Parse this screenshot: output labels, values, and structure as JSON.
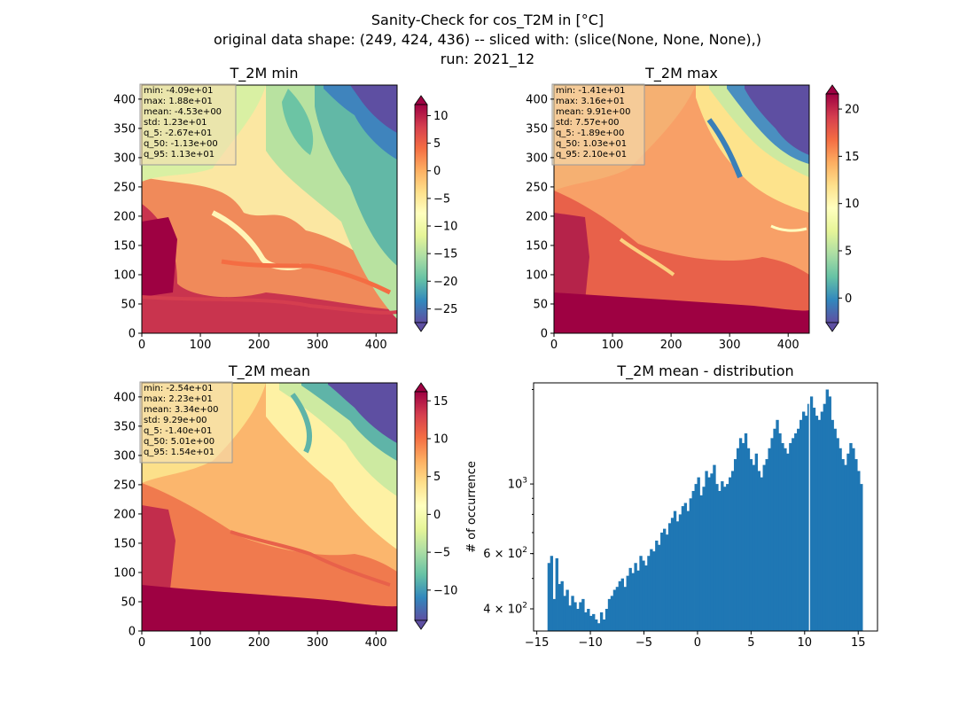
{
  "figure": {
    "title_lines": [
      "Sanity-Check for cos_T2M in [°C]",
      "original data shape: (249, 424, 436) -- sliced with: (slice(None, None, None),)",
      "run: 2021_12"
    ]
  },
  "colormap": "Spectral_r",
  "colors": {
    "hist_bar": "#1f77b4",
    "stats_box_bg": "#f5deb3"
  },
  "chart_data": [
    {
      "type": "heatmap",
      "title": "T_2M min",
      "xlim": [
        0,
        436
      ],
      "ylim": [
        0,
        424
      ],
      "xticks": [
        0,
        100,
        200,
        300,
        400
      ],
      "yticks": [
        0,
        50,
        100,
        150,
        200,
        250,
        300,
        350,
        400
      ],
      "colorbar": {
        "min": -27.5,
        "max": 12.0,
        "ticks": [
          10,
          5,
          0,
          -5,
          -10,
          -15,
          -20,
          -25
        ],
        "extend": "both"
      },
      "stats": [
        "min: -4.09e+01",
        "max: 1.88e+01",
        "mean: -4.53e+00",
        "std: 1.23e+01",
        "q_5: -2.67e+01",
        "q_50: -1.13e+00",
        "q_95: 1.13e+01"
      ]
    },
    {
      "type": "heatmap",
      "title": "T_2M max",
      "xlim": [
        0,
        436
      ],
      "ylim": [
        0,
        424
      ],
      "xticks": [
        0,
        100,
        200,
        300,
        400
      ],
      "yticks": [
        0,
        50,
        100,
        150,
        200,
        250,
        300,
        350,
        400
      ],
      "colorbar": {
        "min": -2.6,
        "max": 21.6,
        "ticks": [
          20,
          15,
          10,
          5,
          0
        ],
        "extend": "both"
      },
      "stats": [
        "min: -1.41e+01",
        "max: 3.16e+01",
        "mean: 9.91e+00",
        "std: 7.57e+00",
        "q_5: -1.89e+00",
        "q_50: 1.03e+01",
        "q_95: 2.10e+01"
      ]
    },
    {
      "type": "heatmap",
      "title": "T_2M mean",
      "xlim": [
        0,
        436
      ],
      "ylim": [
        0,
        424
      ],
      "xticks": [
        0,
        100,
        200,
        300,
        400
      ],
      "yticks": [
        0,
        50,
        100,
        150,
        200,
        250,
        300,
        350,
        400
      ],
      "colorbar": {
        "min": -14.0,
        "max": 16.2,
        "ticks": [
          15,
          10,
          5,
          0,
          -5,
          -10
        ],
        "extend": "both"
      },
      "stats": [
        "min: -2.54e+01",
        "max: 2.23e+01",
        "mean: 3.34e+00",
        "std: 9.29e+00",
        "q_5: -1.40e+01",
        "q_50: 5.01e+00",
        "q_95: 1.54e+01"
      ]
    },
    {
      "type": "bar",
      "title": "T_2M mean - distribution",
      "ylabel": "# of occurrence",
      "yscale": "log",
      "xlim": [
        -15.3,
        16.8
      ],
      "ylim": [
        340,
        2100
      ],
      "xticks": [
        -15,
        -10,
        -5,
        0,
        5,
        10,
        15
      ],
      "xtick_labels": [
        "−15",
        "−10",
        "−5",
        "0",
        "5",
        "10",
        "15"
      ],
      "ytick_labels": [
        {
          "value": 400,
          "base": "4",
          "exp": "2"
        },
        {
          "value": 600,
          "base": "6",
          "exp": "2"
        },
        {
          "value": 1000,
          "base": "10",
          "exp": "3"
        }
      ],
      "bin_range": [
        -14.0,
        15.4
      ],
      "values": [
        560,
        590,
        430,
        580,
        480,
        490,
        440,
        460,
        410,
        440,
        420,
        400,
        420,
        430,
        390,
        400,
        380,
        385,
        370,
        360,
        390,
        370,
        400,
        430,
        440,
        460,
        470,
        490,
        500,
        470,
        510,
        540,
        520,
        560,
        530,
        590,
        570,
        550,
        590,
        620,
        610,
        660,
        640,
        700,
        720,
        690,
        750,
        780,
        820,
        760,
        800,
        850,
        870,
        820,
        900,
        950,
        1000,
        1050,
        920,
        980,
        1100,
        1050,
        1080,
        1150,
        1000,
        950,
        1020,
        980,
        1000,
        1050,
        1100,
        1200,
        1300,
        1400,
        1350,
        1450,
        1300,
        1200,
        1150,
        1250,
        1100,
        1050,
        1150,
        1200,
        1300,
        1400,
        1500,
        1600,
        1450,
        1350,
        1300,
        1250,
        1350,
        1400,
        1450,
        1500,
        1600,
        1700,
        1650,
        1800,
        1900,
        1750,
        1650,
        1600,
        1700,
        1800,
        2000,
        1900,
        1600,
        1500,
        1400,
        1300,
        1200,
        1150,
        1250,
        1350,
        1300,
        1200,
        1100,
        1000
      ],
      "gap_at": 10.45
    }
  ]
}
